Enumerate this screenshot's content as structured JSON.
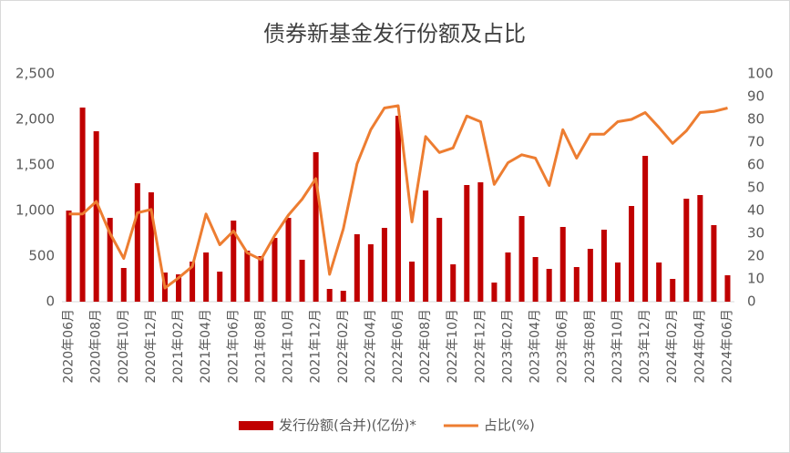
{
  "chart_data": {
    "type": "bar-line",
    "title": "债券新基金发行份额及占比",
    "categories": [
      "2020年06月",
      null,
      "2020年08月",
      null,
      "2020年10月",
      null,
      "2020年12月",
      null,
      "2021年02月",
      null,
      "2021年04月",
      null,
      "2021年06月",
      null,
      "2021年08月",
      null,
      "2021年10月",
      null,
      "2021年12月",
      null,
      "2022年02月",
      null,
      "2022年04月",
      null,
      "2022年06月",
      null,
      "2022年08月",
      null,
      "2022年10月",
      null,
      "2022年12月",
      null,
      "2023年02月",
      null,
      "2023年04月",
      null,
      "2023年06月",
      null,
      "2023年08月",
      null,
      "2023年10月",
      null,
      "2023年12月",
      null,
      "2024年02月",
      null,
      "2024年04月",
      null,
      "2024年06月"
    ],
    "series": [
      {
        "name": "发行份额(合并)(亿份)*",
        "color": "#c00000",
        "type": "bar",
        "values": [
          1000,
          2130,
          1870,
          920,
          370,
          1300,
          1200,
          320,
          300,
          440,
          540,
          330,
          890,
          560,
          500,
          700,
          920,
          460,
          1640,
          140,
          120,
          740,
          630,
          810,
          2040,
          440,
          1220,
          920,
          410,
          1280,
          1310,
          210,
          540,
          940,
          490,
          360,
          820,
          380,
          580,
          790,
          430,
          1050,
          1600,
          430,
          250,
          1130,
          1170,
          840,
          290
        ]
      },
      {
        "name": "占比(%)",
        "color": "#ed7d31",
        "type": "line",
        "axis": "y2",
        "values": [
          38.5,
          38.5,
          44,
          30,
          19,
          39,
          40.5,
          6,
          10.5,
          15.5,
          38.5,
          25,
          31,
          21.5,
          18.5,
          29,
          38,
          45,
          54,
          12,
          32,
          60.5,
          75.5,
          85,
          86,
          35,
          72.5,
          65.5,
          67.5,
          81.5,
          79,
          51.5,
          61,
          64.5,
          63,
          51,
          75.5,
          63,
          73.5,
          73.5,
          79,
          80,
          83,
          76.5,
          69.5,
          75,
          83,
          83.5,
          85
        ]
      }
    ],
    "ylim": [
      0,
      2500
    ],
    "yticks": [
      0,
      500,
      {
        "value": 1000,
        "label": "1,000"
      },
      {
        "value": 1500,
        "label": "1,500"
      },
      {
        "value": 2000,
        "label": "2,000"
      },
      {
        "value": 2500,
        "label": "2,500"
      }
    ],
    "y2lim": [
      0,
      100
    ],
    "y2ticks": [
      0,
      10,
      20,
      30,
      40,
      50,
      60,
      70,
      80,
      90,
      100
    ],
    "grid": false,
    "legend": "bottom"
  }
}
